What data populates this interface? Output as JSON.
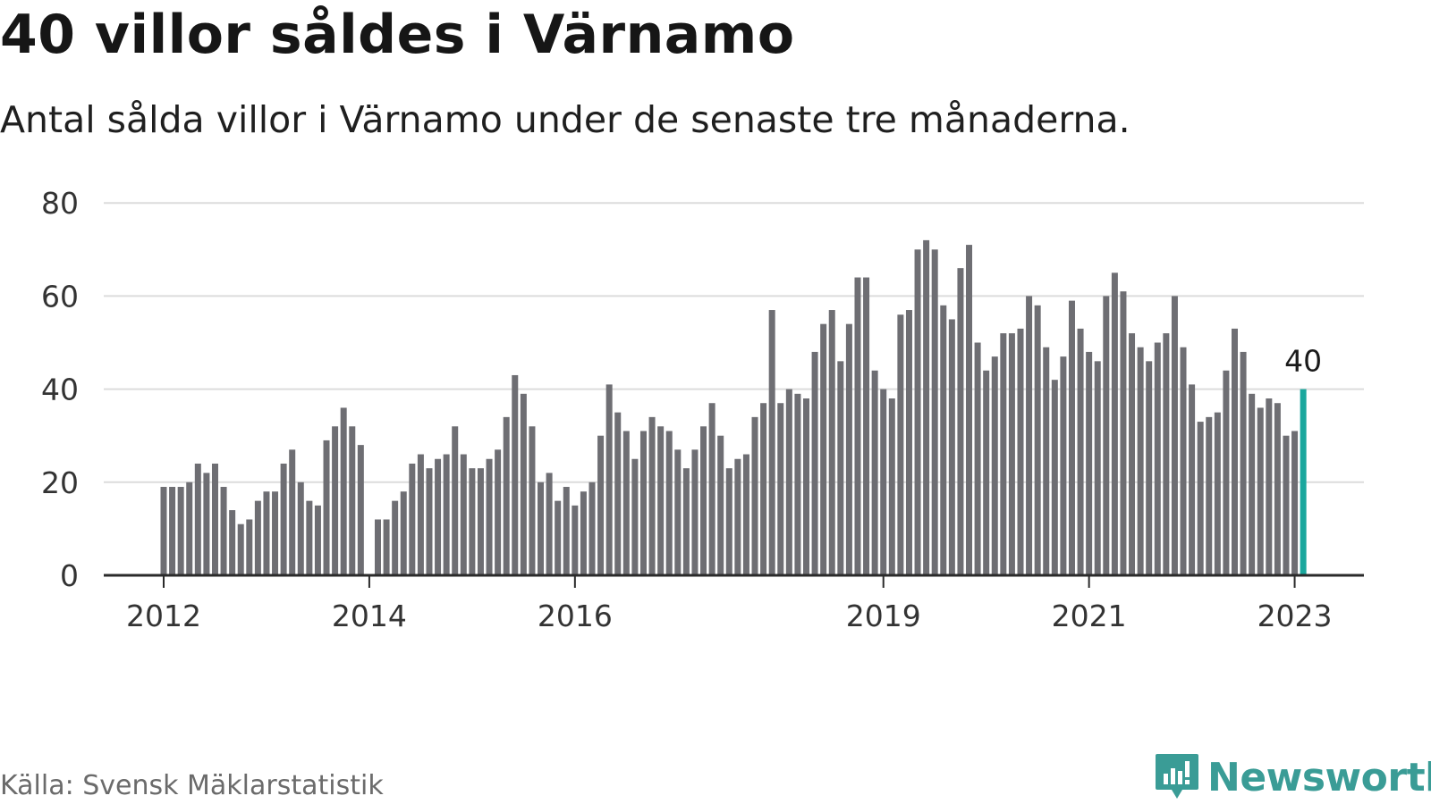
{
  "header": {
    "title": "40 villor såldes i Värnamo",
    "subtitle": "Antal sålda villor i Värnamo under de senaste tre månaderna."
  },
  "footer": {
    "source": "Källa: Svensk Mäklarstatistik",
    "brand": "Newsworthy"
  },
  "colors": {
    "bar": "#6e6e73",
    "highlight": "#1aa79d",
    "grid": "#dcdcdc",
    "axis": "#2a2a2a",
    "brand": "#3a9c96"
  },
  "chart_data": {
    "type": "bar",
    "title": "40 villor såldes i Värnamo",
    "ylim": [
      0,
      80
    ],
    "yticks": [
      0,
      20,
      40,
      60,
      80
    ],
    "xticks": [
      "2012",
      "2014",
      "2016",
      "2019",
      "2021",
      "2023"
    ],
    "xtick_index": [
      0,
      24,
      48,
      84,
      108,
      132
    ],
    "values": [
      19,
      19,
      19,
      20,
      24,
      22,
      24,
      19,
      14,
      11,
      12,
      16,
      18,
      18,
      24,
      27,
      20,
      16,
      15,
      29,
      32,
      36,
      32,
      28,
      null,
      12,
      12,
      16,
      18,
      24,
      26,
      23,
      25,
      26,
      32,
      26,
      23,
      23,
      25,
      27,
      34,
      43,
      39,
      32,
      20,
      22,
      16,
      19,
      15,
      18,
      20,
      30,
      41,
      35,
      31,
      25,
      31,
      34,
      32,
      31,
      27,
      23,
      27,
      32,
      37,
      30,
      23,
      25,
      26,
      34,
      37,
      57,
      37,
      40,
      39,
      38,
      48,
      54,
      57,
      46,
      54,
      64,
      64,
      44,
      40,
      38,
      56,
      57,
      70,
      72,
      70,
      58,
      55,
      66,
      71,
      50,
      44,
      47,
      52,
      52,
      53,
      60,
      58,
      49,
      42,
      47,
      59,
      53,
      48,
      46,
      60,
      65,
      61,
      52,
      49,
      46,
      50,
      52,
      60,
      49,
      41,
      33,
      34,
      35,
      44,
      53,
      48,
      39,
      36,
      38,
      37,
      30,
      31,
      40
    ],
    "highlight_index": 133,
    "highlight_label": "40"
  }
}
